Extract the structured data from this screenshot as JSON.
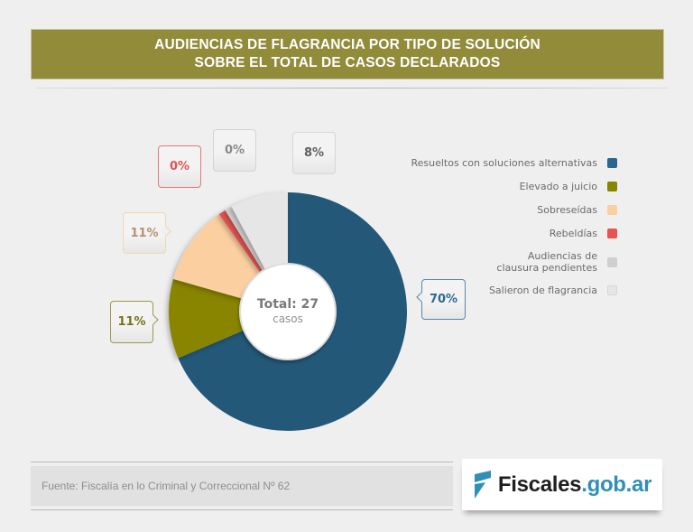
{
  "header": {
    "title_line1": "AUDIENCIAS DE FLAGRANCIA POR TIPO DE SOLUCIÓN",
    "title_line2": "SOBRE EL TOTAL DE CASOS DECLARADOS"
  },
  "center": {
    "total_label": "Total: 27",
    "unit_label": "casos"
  },
  "callouts": {
    "resueltos": "70%",
    "elevado": "11%",
    "sobreseidas": "11%",
    "rebeldias": "0%",
    "audiencias": "0%",
    "salieron": "8%"
  },
  "legend": [
    {
      "label": "Resueltos con soluciones alternativas",
      "color": "#235878"
    },
    {
      "label": "Elevado a juicio",
      "color": "#898503"
    },
    {
      "label": "Sobreseídas",
      "color": "#fccfa1"
    },
    {
      "label": "Rebeldías",
      "color": "#e75252"
    },
    {
      "label": "Audiencias de clausura pendientes",
      "line1": "Audiencias de",
      "line2": "clausura pendientes",
      "color": "#cfcfcf"
    },
    {
      "label": "Salieron de flagrancia",
      "color": "#e6e6e6"
    }
  ],
  "footer": {
    "source": "Fuente: Fiscalía en lo Criminal y Correccional Nº 62",
    "logo_part1": "Fiscales",
    "logo_part2": ".gob.ar"
  },
  "chart_data": {
    "type": "pie",
    "title": "AUDIENCIAS DE FLAGRANCIA POR TIPO DE SOLUCIÓN SOBRE EL TOTAL DE CASOS DECLARADOS",
    "subtitle": "Total: 27 casos",
    "categories": [
      "Resueltos con soluciones alternativas",
      "Elevado a juicio",
      "Sobreseídas",
      "Rebeldías",
      "Audiencias de clausura pendientes",
      "Salieron de flagrancia"
    ],
    "values": [
      70,
      11,
      11,
      0,
      0,
      8
    ],
    "value_labels": [
      "70%",
      "11%",
      "11%",
      "0%",
      "0%",
      "8%"
    ],
    "colors": [
      "#235878",
      "#898503",
      "#fccfa1",
      "#e75252",
      "#cfcfcf",
      "#e6e6e6"
    ],
    "donut": true,
    "start_angle": "12 o'clock, clockwise",
    "legend_position": "right"
  }
}
